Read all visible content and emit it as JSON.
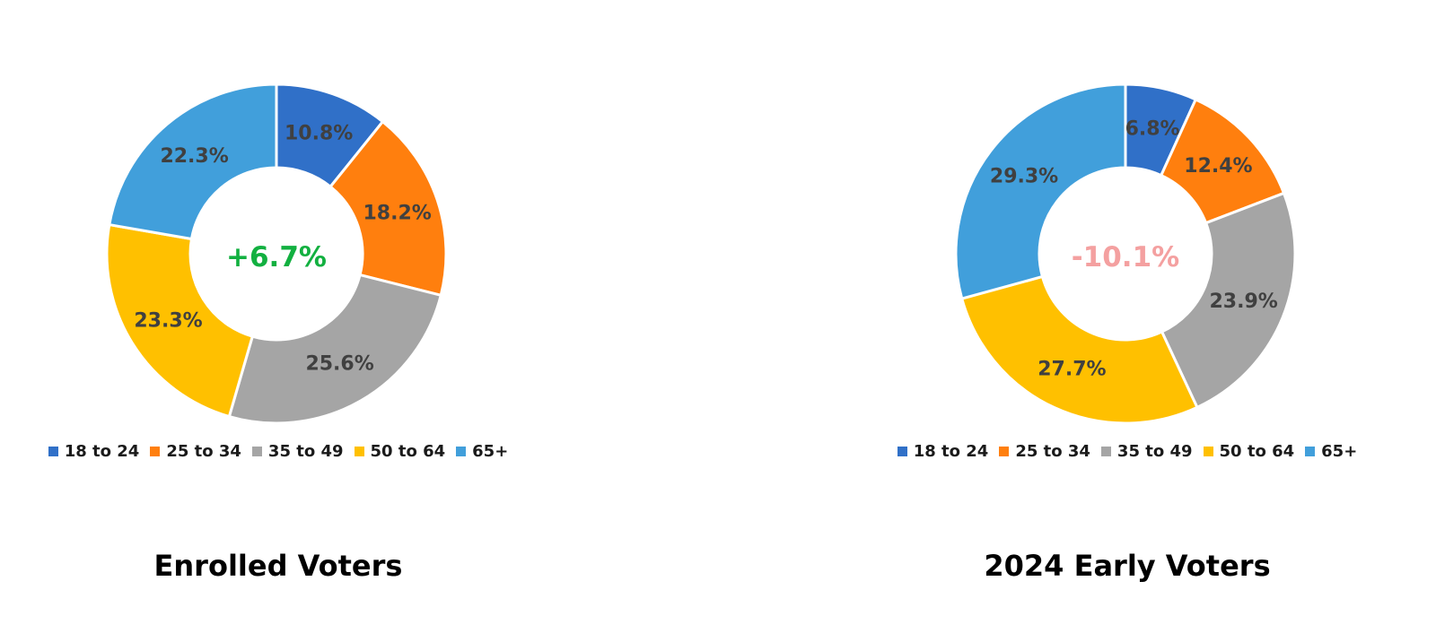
{
  "chart_data": [
    {
      "type": "pie",
      "title": "Enrolled Voters",
      "center_label": "+6.7%",
      "center_color": "#12b040",
      "categories": [
        "18 to 24",
        "25 to 34",
        "35 to 49",
        "50 to 64",
        "65+"
      ],
      "values": [
        10.8,
        18.2,
        25.6,
        23.3,
        22.3
      ],
      "value_labels": [
        "10.8%",
        "18.2%",
        "25.6%",
        "23.3%",
        "22.3%"
      ],
      "colors": [
        "#3070c8",
        "#ff7f0e",
        "#a5a5a5",
        "#ffc000",
        "#419fdb"
      ],
      "legend_position": "bottom"
    },
    {
      "type": "pie",
      "title": "2024 Early Voters",
      "center_label": "-10.1%",
      "center_color": "#f4a0a0",
      "categories": [
        "18 to 24",
        "25 to 34",
        "35 to 49",
        "50 to 64",
        "65+"
      ],
      "values": [
        6.8,
        12.4,
        23.9,
        27.7,
        29.3
      ],
      "value_labels": [
        "6.8%",
        "12.4%",
        "23.9%",
        "27.7%",
        "29.3%"
      ],
      "colors": [
        "#3070c8",
        "#ff7f0e",
        "#a5a5a5",
        "#ffc000",
        "#419fdb"
      ],
      "legend_position": "bottom"
    }
  ]
}
